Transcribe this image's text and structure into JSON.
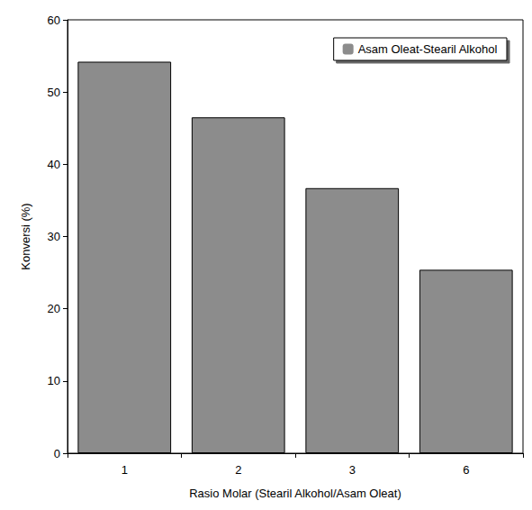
{
  "chart_data": {
    "type": "bar",
    "x_label": "Rasio Molar (Stearil Alkohol/Asam Oleat)",
    "y_label": "Konversi (%)",
    "categories": [
      "1",
      "2",
      "3",
      "6"
    ],
    "series": [
      {
        "name": "Asam Oleat-Stearil Alkohol",
        "color": "#8c8c8c",
        "values": [
          54.2,
          46.5,
          36.7,
          25.4
        ]
      }
    ],
    "ylim": [
      0,
      60
    ],
    "yticks": [
      0,
      10,
      20,
      30,
      40,
      50,
      60
    ],
    "grid": false,
    "legend": "top-right"
  }
}
